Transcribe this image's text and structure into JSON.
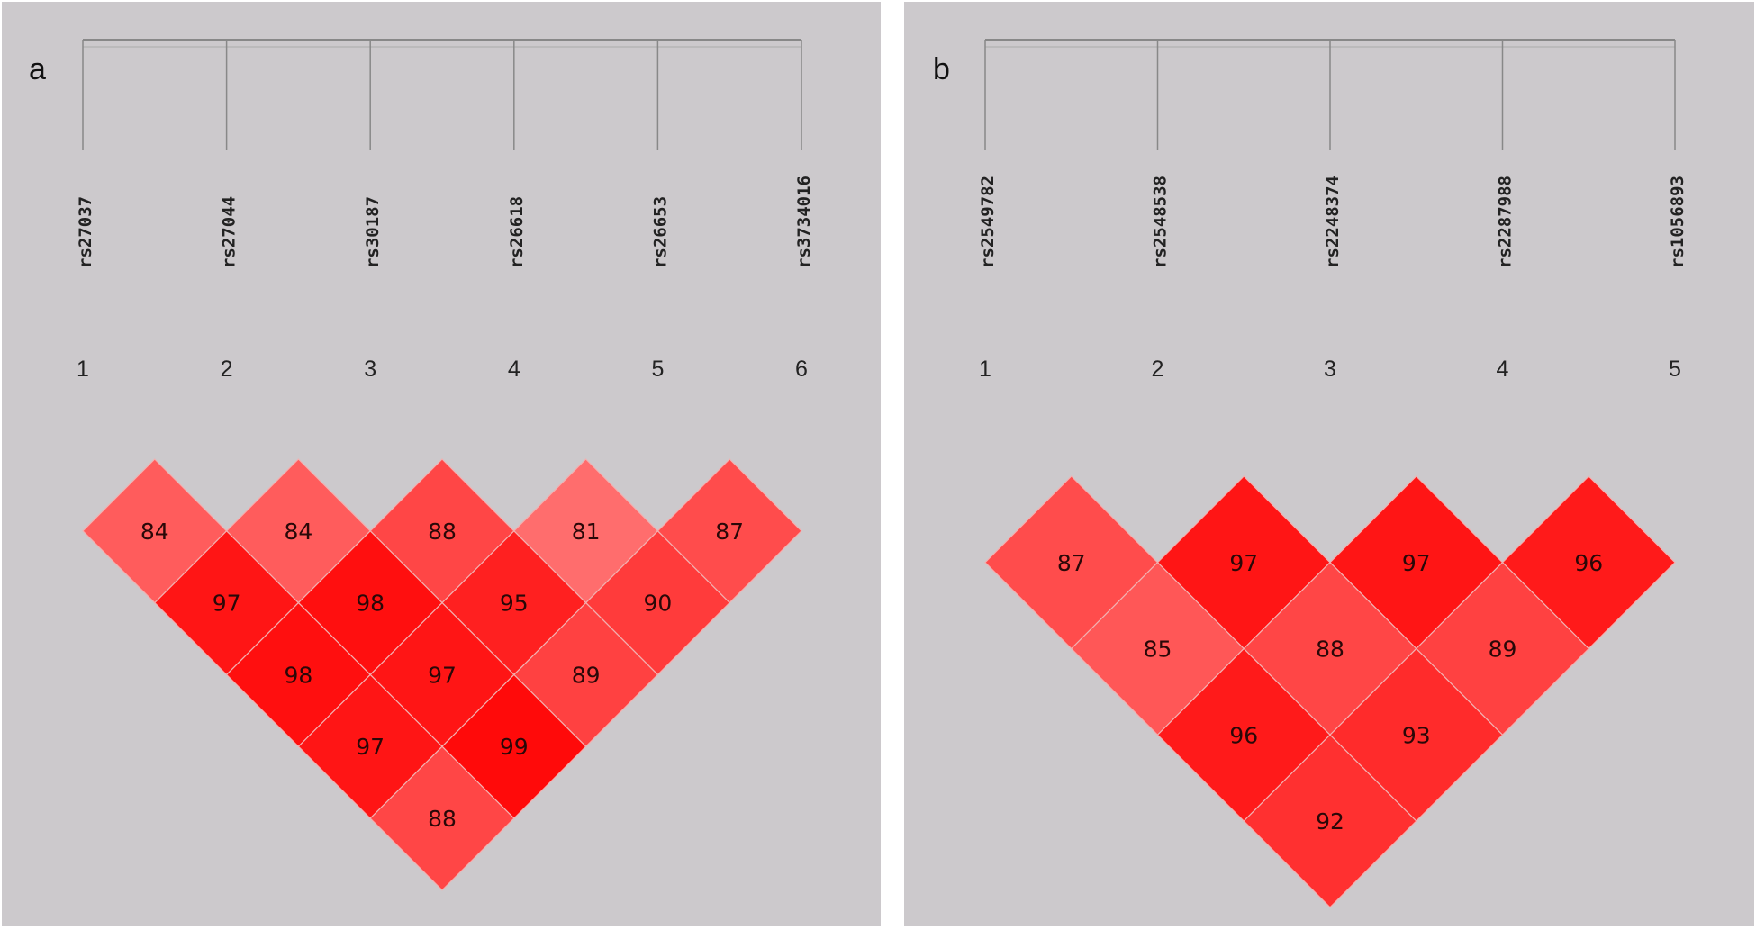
{
  "panels": [
    {
      "label": "a",
      "snps": [
        "rs27037",
        "rs27044",
        "rs30187",
        "rs26618",
        "rs26653",
        "rs3734016"
      ],
      "numbers": [
        "1",
        "2",
        "3",
        "4",
        "5",
        "6"
      ],
      "ld_matrix": [
        [
          84,
          84,
          88,
          81,
          87
        ],
        [
          97,
          98,
          95,
          90
        ],
        [
          98,
          97,
          89
        ],
        [
          97,
          99
        ],
        [
          88
        ]
      ]
    },
    {
      "label": "b",
      "snps": [
        "rs2549782",
        "rs2548538",
        "rs2248374",
        "rs2287988",
        "rs1056893"
      ],
      "numbers": [
        "1",
        "2",
        "3",
        "4",
        "5"
      ],
      "ld_matrix": [
        [
          87,
          97,
          97,
          96
        ],
        [
          85,
          88,
          89
        ],
        [
          96,
          93
        ],
        [
          92
        ]
      ]
    }
  ]
}
